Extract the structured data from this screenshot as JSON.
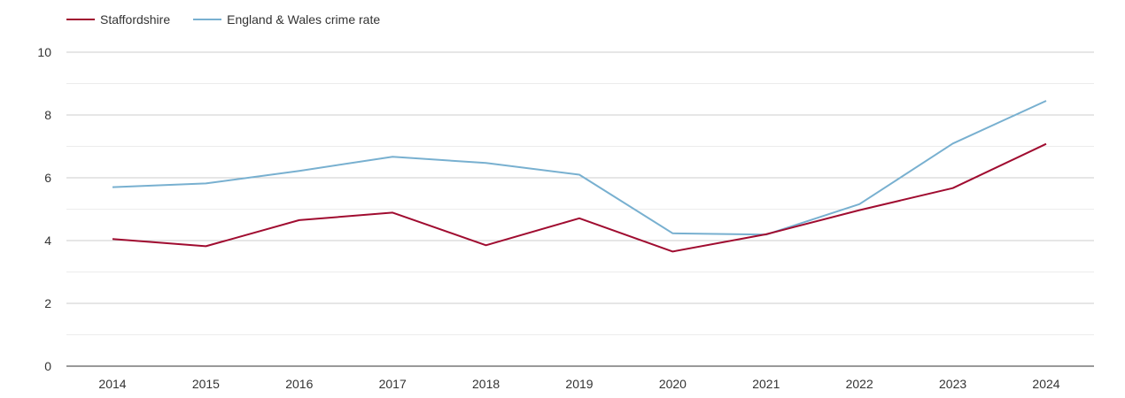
{
  "chart_data": {
    "type": "line",
    "title": "",
    "xlabel": "",
    "ylabel": "",
    "x": [
      "2014",
      "2015",
      "2016",
      "2017",
      "2018",
      "2019",
      "2020",
      "2021",
      "2022",
      "2023",
      "2024"
    ],
    "ylim": [
      0,
      10
    ],
    "yticks": [
      "0",
      "2",
      "4",
      "6",
      "8",
      "10"
    ],
    "grid": true,
    "legend_position": "top-left",
    "series": [
      {
        "name": "Staffordshire",
        "color": "#a00c30",
        "values": [
          4.05,
          3.82,
          4.65,
          4.89,
          3.85,
          4.71,
          3.65,
          4.2,
          4.97,
          5.67,
          7.08
        ]
      },
      {
        "name": "England & Wales crime rate",
        "color": "#78b0d0",
        "values": [
          5.7,
          5.82,
          6.22,
          6.67,
          6.47,
          6.1,
          4.23,
          4.19,
          5.16,
          7.09,
          8.45
        ]
      }
    ]
  }
}
